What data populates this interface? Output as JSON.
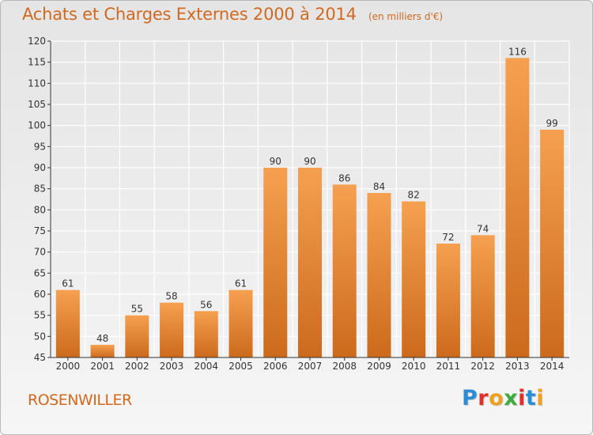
{
  "header": {
    "title": "Achats et Charges Externes 2000 à 2014",
    "unit": "(en milliers d'€)"
  },
  "footer": {
    "city": "ROSENWILLER",
    "logo_letters": [
      "P",
      "r",
      "o",
      "x",
      "i",
      "t",
      "i"
    ],
    "logo_colors": [
      "#2a8dd6",
      "#e0302a",
      "#f0a020",
      "#3cac3c",
      "#e0302a",
      "#2a8dd6",
      "#f0a020"
    ]
  },
  "colors": {
    "bar": "#f0903c",
    "title": "#d2691e",
    "grid": "#ffffff",
    "axis": "#333333"
  },
  "chart_data": {
    "type": "bar",
    "categories": [
      "2000",
      "2001",
      "2002",
      "2003",
      "2004",
      "2005",
      "2006",
      "2007",
      "2008",
      "2009",
      "2010",
      "2011",
      "2012",
      "2013",
      "2014"
    ],
    "values": [
      61,
      48,
      55,
      58,
      56,
      61,
      90,
      90,
      86,
      84,
      82,
      72,
      74,
      116,
      99
    ],
    "title": "Achats et Charges Externes 2000 à 2014",
    "xlabel": "",
    "ylabel": "",
    "ylim": [
      45,
      120
    ],
    "yticks": [
      45,
      50,
      55,
      60,
      65,
      70,
      75,
      80,
      85,
      90,
      95,
      100,
      105,
      110,
      115,
      120
    ],
    "grid": true,
    "data_labels": true
  }
}
